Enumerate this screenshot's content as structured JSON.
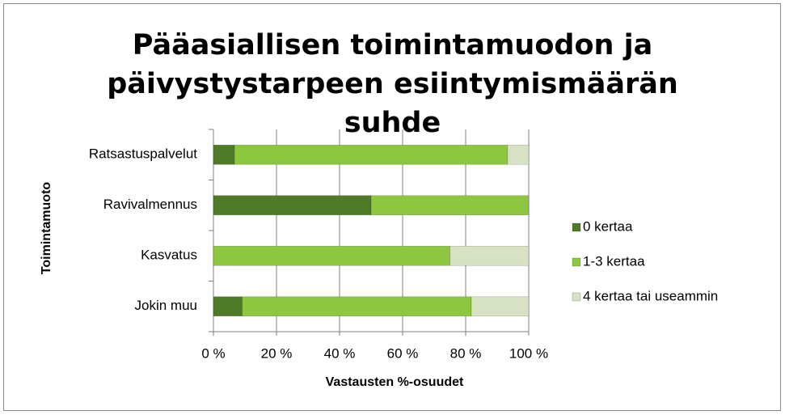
{
  "chart_data": {
    "type": "stacked_barh",
    "title": "Pääasiallisen toimintamuodon ja päivystystarpeen esiintymismäärän suhde",
    "xlabel": "Vastausten %-osuudet",
    "ylabel": "Toimintamuoto",
    "categories": [
      "Ratsastuspalvelut",
      "Ravivalmennus",
      "Kasvatus",
      "Jokin muu"
    ],
    "series": [
      {
        "name": "0 kertaa",
        "color": "#4f7a28",
        "values": [
          6.7,
          50,
          0,
          9.1
        ]
      },
      {
        "name": "1-3 kertaa",
        "color": "#8dc63f",
        "values": [
          86.6,
          50,
          75,
          72.7
        ]
      },
      {
        "name": "4 kertaa tai useammin",
        "color": "#d6e2c2",
        "values": [
          6.7,
          0,
          25,
          18.2
        ]
      }
    ],
    "xlim": [
      0,
      100
    ],
    "xticks": [
      {
        "value": 0,
        "label": "0 %"
      },
      {
        "value": 20,
        "label": "20 %"
      },
      {
        "value": 40,
        "label": "40 %"
      },
      {
        "value": 60,
        "label": "60 %"
      },
      {
        "value": 80,
        "label": "80 %"
      },
      {
        "value": 100,
        "label": "100 %"
      }
    ],
    "grid": true,
    "legend": "right"
  }
}
